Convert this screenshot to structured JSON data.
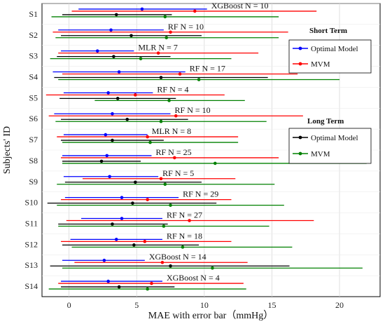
{
  "chart_data": {
    "type": "errorbar",
    "xlabel": "MAE with error bar（mmHg）",
    "ylabel": "Subjects' ID",
    "xlim": [
      -2,
      23
    ],
    "xticks": [
      0,
      5,
      10,
      15,
      20
    ],
    "grid": true,
    "colors": {
      "optimal_short": "#0000ff",
      "mvm_short": "#ff0000",
      "optimal_long": "#000000",
      "mvm_long": "#008000"
    },
    "legends": [
      {
        "title": "Short Term",
        "items": [
          {
            "label": "Optimal Model",
            "color": "#0000ff"
          },
          {
            "label": "MVM",
            "color": "#ff0000"
          }
        ]
      },
      {
        "title": "Long Term",
        "items": [
          {
            "label": "Optimal Model",
            "color": "#000000"
          },
          {
            "label": "MVM",
            "color": "#008000"
          }
        ]
      }
    ],
    "subjects": [
      {
        "id": "S1",
        "annotation": "XGBoost   N = 10",
        "optimal_short": {
          "mean": 5.4,
          "low": 0.7,
          "high": 10.2
        },
        "mvm_short": {
          "mean": 9.3,
          "low": 0.2,
          "high": 18.3
        },
        "optimal_long": {
          "mean": 3.5,
          "low": -0.5,
          "high": 7.6
        },
        "mvm_long": {
          "mean": 7.1,
          "low": -1.3,
          "high": 15.5
        }
      },
      {
        "id": "S2",
        "annotation": "RF   N = 10",
        "optimal_short": {
          "mean": 3.1,
          "low": -0.8,
          "high": 7.0
        },
        "mvm_short": {
          "mean": 7.5,
          "low": -1.2,
          "high": 16.2
        },
        "optimal_long": {
          "mean": 4.6,
          "low": -0.6,
          "high": 9.8
        },
        "mvm_long": {
          "mean": 7.2,
          "low": -1.0,
          "high": 15.5
        }
      },
      {
        "id": "S3",
        "annotation": "MLR   N = 7",
        "optimal_short": {
          "mean": 2.1,
          "low": -0.6,
          "high": 4.8
        },
        "mvm_short": {
          "mean": 6.6,
          "low": -0.8,
          "high": 14.0
        },
        "optimal_long": {
          "mean": 3.3,
          "low": -0.9,
          "high": 7.5
        },
        "mvm_long": {
          "mean": 5.3,
          "low": -1.4,
          "high": 12.0
        }
      },
      {
        "id": "S4",
        "annotation": "RF   N = 17",
        "optimal_short": {
          "mean": 3.7,
          "low": -1.2,
          "high": 8.6
        },
        "mvm_short": {
          "mean": 8.2,
          "low": -0.5,
          "high": 16.9
        },
        "optimal_long": {
          "mean": 6.8,
          "low": -1.1,
          "high": 14.7
        },
        "mvm_long": {
          "mean": 9.6,
          "low": -0.8,
          "high": 20.0
        }
      },
      {
        "id": "S5",
        "annotation": "RF   N = 4",
        "optimal_short": {
          "mean": 2.9,
          "low": -0.4,
          "high": 6.2
        },
        "mvm_short": {
          "mean": 4.9,
          "low": -1.7,
          "high": 11.5
        },
        "optimal_long": {
          "mean": 3.6,
          "low": -0.7,
          "high": 7.9
        },
        "mvm_long": {
          "mean": 7.4,
          "low": 1.9,
          "high": 13.0
        }
      },
      {
        "id": "S6",
        "annotation": "RF   N = 10",
        "optimal_short": {
          "mean": 3.2,
          "low": -1.1,
          "high": 7.5
        },
        "mvm_short": {
          "mean": 7.9,
          "low": -1.5,
          "high": 17.3
        },
        "optimal_long": {
          "mean": 4.3,
          "low": -0.6,
          "high": 8.8
        },
        "mvm_long": {
          "mean": 6.8,
          "low": -1.0,
          "high": 14.6
        }
      },
      {
        "id": "S7",
        "annotation": "MLR   N = 8",
        "optimal_short": {
          "mean": 2.7,
          "low": -0.4,
          "high": 5.8
        },
        "mvm_short": {
          "mean": 5.8,
          "low": -0.9,
          "high": 12.5
        },
        "optimal_long": {
          "mean": 3.2,
          "low": -0.6,
          "high": 7.0
        },
        "mvm_long": {
          "mean": 6.0,
          "low": -0.5,
          "high": 12.5
        }
      },
      {
        "id": "S8",
        "annotation": "RF   N = 25",
        "optimal_short": {
          "mean": 2.8,
          "low": -0.5,
          "high": 6.1
        },
        "mvm_short": {
          "mean": 7.8,
          "low": -0.6,
          "high": 15.5
        },
        "optimal_long": {
          "mean": 2.4,
          "low": -0.5,
          "high": 5.3
        },
        "mvm_long": {
          "mean": 10.8,
          "low": -0.5,
          "high": 22.0
        }
      },
      {
        "id": "S9",
        "annotation": "RF   N = 5",
        "optimal_short": {
          "mean": 3.0,
          "low": -0.4,
          "high": 6.6
        },
        "mvm_short": {
          "mean": 6.8,
          "low": 1.0,
          "high": 12.3
        },
        "optimal_long": {
          "mean": 4.9,
          "low": -0.3,
          "high": 9.8
        },
        "mvm_long": {
          "mean": 7.1,
          "low": -0.9,
          "high": 15.2
        }
      },
      {
        "id": "S10",
        "annotation": "RF   N = 29",
        "optimal_short": {
          "mean": 3.9,
          "low": -0.3,
          "high": 8.1
        },
        "mvm_short": {
          "mean": 5.8,
          "low": -0.6,
          "high": 12.0
        },
        "optimal_long": {
          "mean": 4.7,
          "low": -1.6,
          "high": 10.9
        },
        "mvm_long": {
          "mean": 7.5,
          "low": -0.9,
          "high": 15.9
        }
      },
      {
        "id": "S11",
        "annotation": "RF   N = 27",
        "optimal_short": {
          "mean": 3.9,
          "low": 0.9,
          "high": 6.9
        },
        "mvm_short": {
          "mean": 8.9,
          "low": -0.2,
          "high": 18.1
        },
        "optimal_long": {
          "mean": 3.2,
          "low": -0.8,
          "high": 7.3
        },
        "mvm_long": {
          "mean": 7.0,
          "low": -0.8,
          "high": 14.8
        }
      },
      {
        "id": "S12",
        "annotation": "RF   N = 18",
        "optimal_short": {
          "mean": 3.5,
          "low": 0.1,
          "high": 6.9
        },
        "mvm_short": {
          "mean": 5.6,
          "low": -0.6,
          "high": 12.0
        },
        "optimal_long": {
          "mean": 4.8,
          "low": -0.5,
          "high": 9.6
        },
        "mvm_long": {
          "mean": 8.4,
          "low": 0.2,
          "high": 16.5
        }
      },
      {
        "id": "S13",
        "annotation": "XGBoost   N = 14",
        "optimal_short": {
          "mean": 2.6,
          "low": -0.5,
          "high": 5.6
        },
        "mvm_short": {
          "mean": 6.9,
          "low": 0.4,
          "high": 13.2
        },
        "optimal_long": {
          "mean": 7.5,
          "low": -1.4,
          "high": 16.3
        },
        "mvm_long": {
          "mean": 10.6,
          "low": -0.5,
          "high": 21.7
        }
      },
      {
        "id": "S14",
        "annotation": "XGBoost   N = 4",
        "optimal_short": {
          "mean": 2.9,
          "low": -0.6,
          "high": 6.9
        },
        "mvm_short": {
          "mean": 6.1,
          "low": -0.8,
          "high": 12.9
        },
        "optimal_long": {
          "mean": 3.7,
          "low": -0.6,
          "high": 7.8
        },
        "mvm_long": {
          "mean": 5.8,
          "low": -1.5,
          "high": 13.1
        }
      }
    ]
  }
}
